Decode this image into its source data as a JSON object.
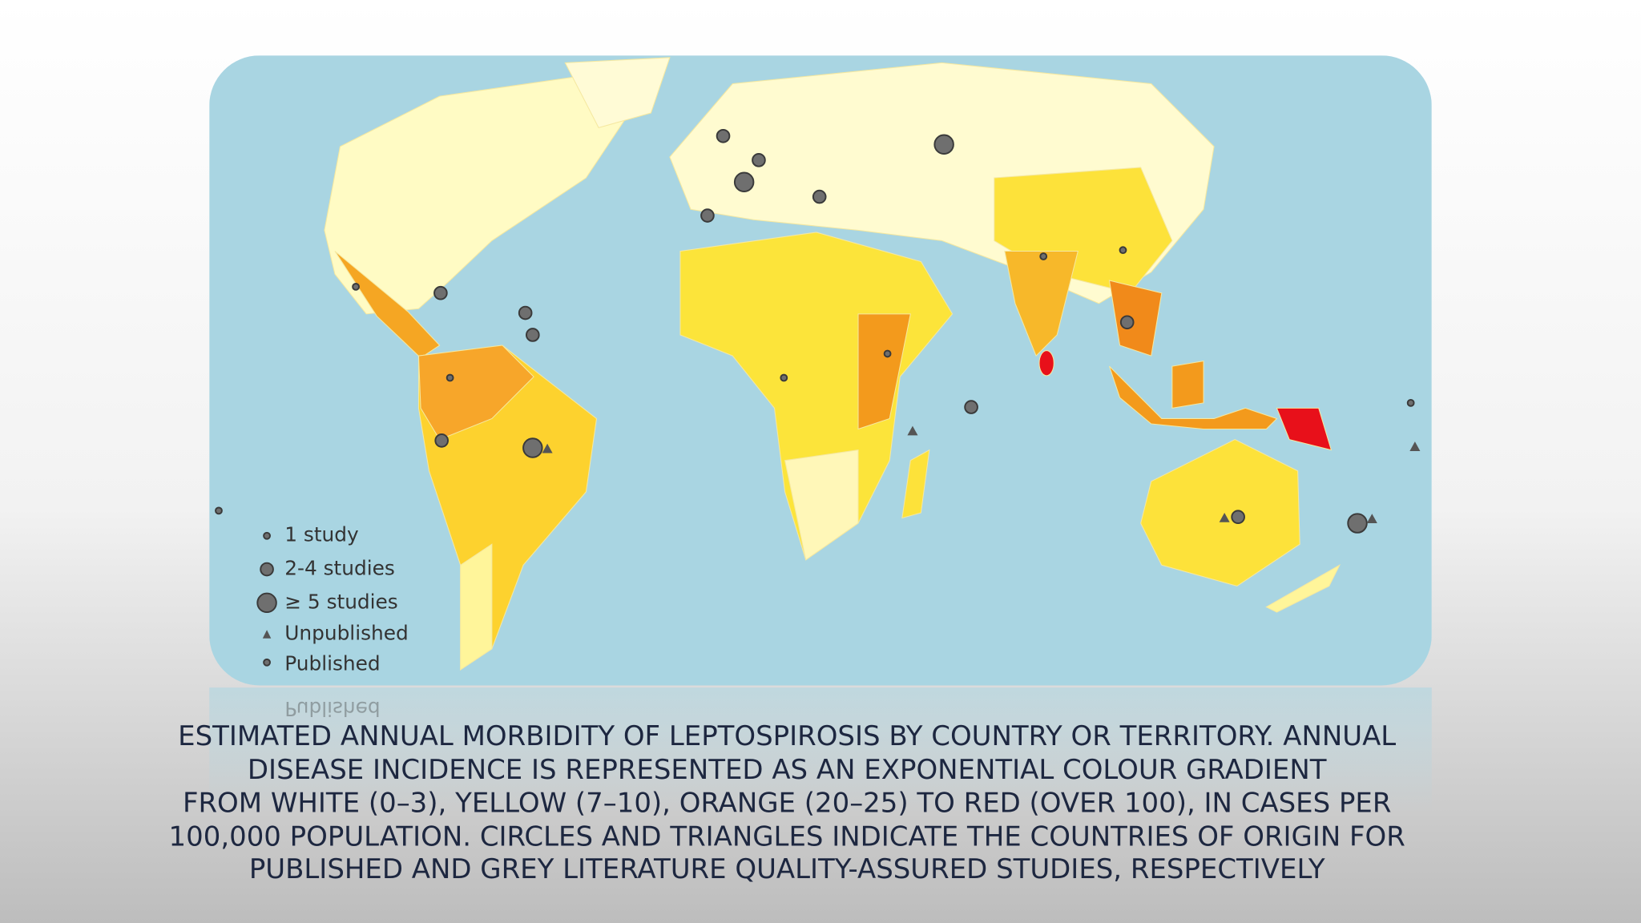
{
  "map": {
    "legend": [
      "1 study",
      "2-4 studies",
      "≥ 5 studies",
      "Unpublished",
      "Published"
    ]
  },
  "caption": [
    "ESTIMATED ANNUAL MORBIDITY OF LEPTOSPIROSIS BY COUNTRY OR TERRITORY. ANNUAL",
    "DISEASE INCIDENCE IS REPRESENTED AS AN EXPONENTIAL COLOUR GRADIENT",
    "FROM WHITE (0–3), YELLOW (7–10), ORANGE (20–25) TO RED (OVER 100), IN CASES PER",
    "100,000 POPULATION. CIRCLES AND TRIANGLES INDICATE THE COUNTRIES OF ORIGIN FOR",
    "PUBLISHED AND GREY LITERATURE QUALITY-ASSURED STUDIES, RESPECTIVELY"
  ]
}
